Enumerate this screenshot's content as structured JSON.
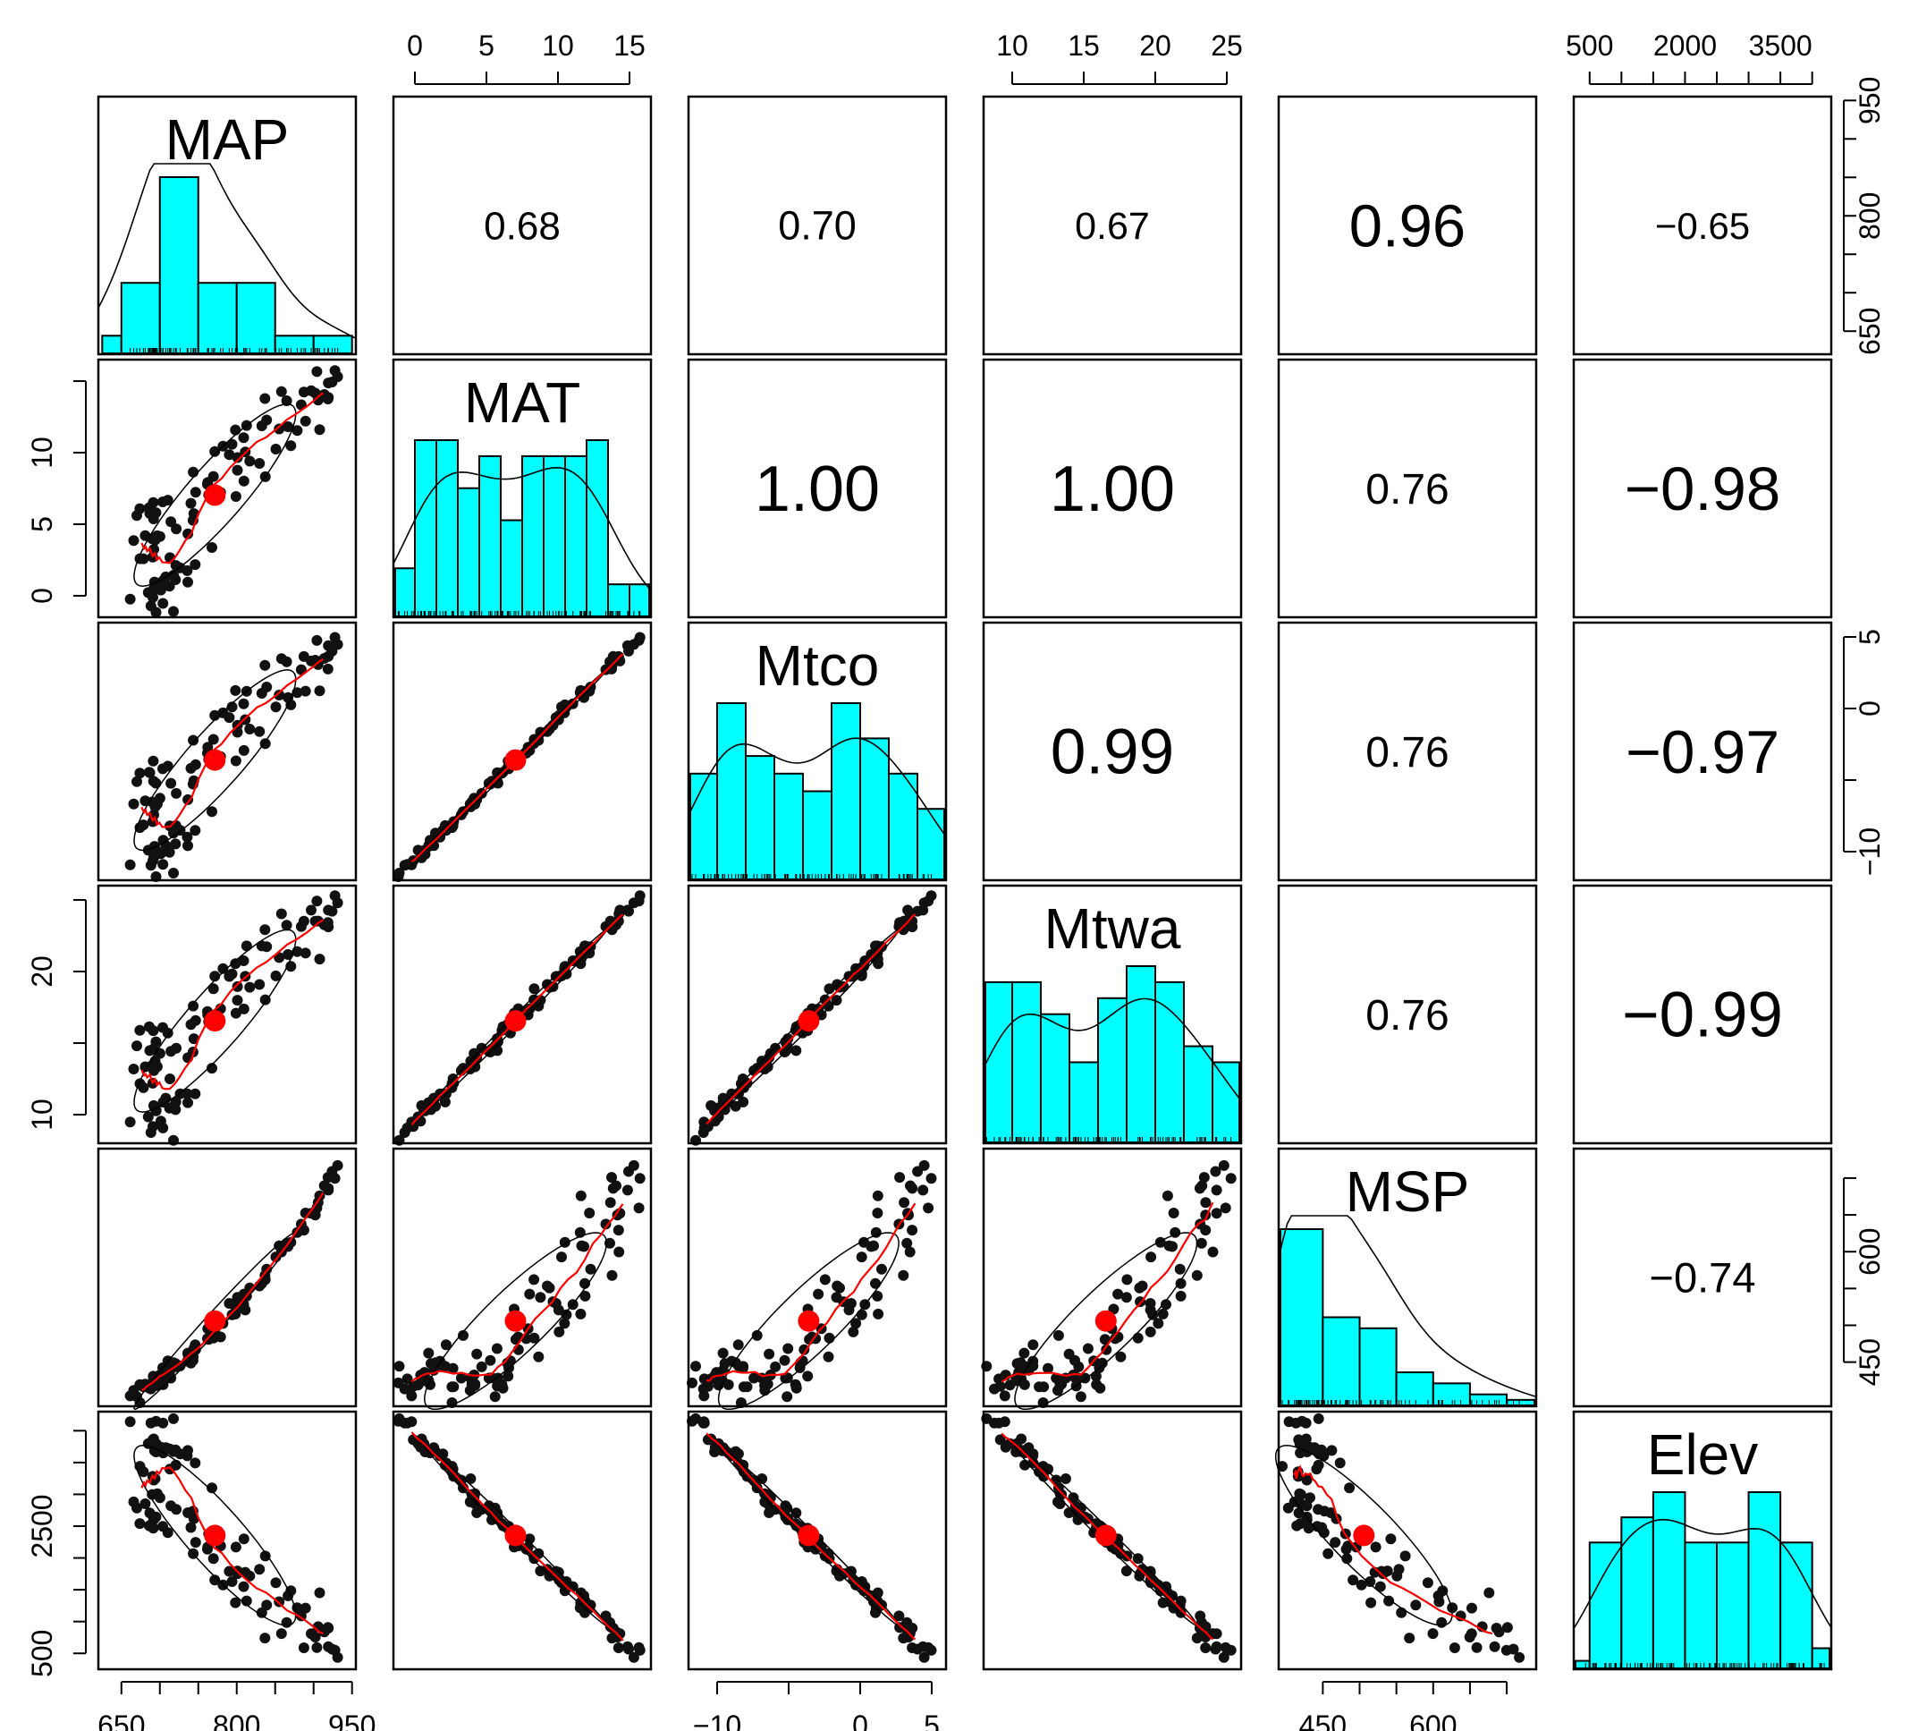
{
  "chart_data": {
    "type": "scatter",
    "title": "",
    "variables": [
      "MAP",
      "MAT",
      "Mtco",
      "Mtwa",
      "MSP",
      "Elev"
    ],
    "ranges": {
      "MAP": [
        620,
        955
      ],
      "MAT": [
        -1.5,
        16.5
      ],
      "Mtco": [
        -12,
        6
      ],
      "Mtwa": [
        8,
        26
      ],
      "MSP": [
        390,
        740
      ],
      "Elev": [
        250,
        4300
      ]
    },
    "axes": {
      "top": [
        {
          "variable": "MAT",
          "ticks": [
            0,
            5,
            10,
            15
          ]
        },
        {
          "variable": "Mtwa",
          "ticks": [
            10,
            15,
            20,
            25
          ]
        },
        {
          "variable": "Elev",
          "ticks": [
            500,
            1000,
            1500,
            2000,
            2500,
            3000,
            3500,
            4000
          ],
          "labels": [
            500,
            2000,
            3500
          ]
        }
      ],
      "bottom": [
        {
          "variable": "MAP",
          "ticks": [
            650,
            700,
            750,
            800,
            850,
            900,
            950
          ],
          "labels": [
            650,
            800,
            950
          ]
        },
        {
          "variable": "Mtco",
          "ticks": [
            -10,
            -5,
            0,
            5
          ],
          "labels": [
            -10,
            0,
            5
          ]
        },
        {
          "variable": "MSP",
          "ticks": [
            450,
            500,
            550,
            600,
            650,
            700
          ],
          "labels": [
            450,
            600
          ]
        }
      ],
      "left": [
        {
          "variable": "MAT",
          "ticks": [
            0,
            5,
            10,
            15
          ],
          "labels": [
            0,
            5,
            10
          ]
        },
        {
          "variable": "Mtwa",
          "ticks": [
            10,
            15,
            20,
            25
          ],
          "labels": [
            10,
            20
          ]
        },
        {
          "variable": "Elev",
          "ticks": [
            500,
            1000,
            1500,
            2000,
            2500,
            3000,
            3500,
            4000
          ],
          "labels": [
            500,
            2500
          ]
        }
      ],
      "right": [
        {
          "variable": "MAP",
          "ticks": [
            650,
            700,
            750,
            800,
            850,
            900,
            950
          ],
          "labels": [
            650,
            800,
            950
          ]
        },
        {
          "variable": "Mtco",
          "ticks": [
            -10,
            -5,
            0,
            5
          ],
          "labels": [
            -10,
            0,
            5
          ]
        },
        {
          "variable": "MSP",
          "ticks": [
            450,
            500,
            550,
            600,
            650,
            700
          ],
          "labels": [
            450,
            600
          ]
        }
      ]
    },
    "correlations": [
      {
        "row": 0,
        "col": 1,
        "label": "0.68"
      },
      {
        "row": 0,
        "col": 2,
        "label": "0.70"
      },
      {
        "row": 0,
        "col": 3,
        "label": "0.67"
      },
      {
        "row": 0,
        "col": 4,
        "label": "0.96"
      },
      {
        "row": 0,
        "col": 5,
        "label": "−0.65"
      },
      {
        "row": 1,
        "col": 2,
        "label": "1.00"
      },
      {
        "row": 1,
        "col": 3,
        "label": "1.00"
      },
      {
        "row": 1,
        "col": 4,
        "label": "0.76"
      },
      {
        "row": 1,
        "col": 5,
        "label": "−0.98"
      },
      {
        "row": 2,
        "col": 3,
        "label": "0.99"
      },
      {
        "row": 2,
        "col": 4,
        "label": "0.76"
      },
      {
        "row": 2,
        "col": 5,
        "label": "−0.97"
      },
      {
        "row": 3,
        "col": 4,
        "label": "0.76"
      },
      {
        "row": 3,
        "col": 5,
        "label": "−0.99"
      },
      {
        "row": 4,
        "col": 5,
        "label": "−0.74"
      }
    ],
    "histograms": {
      "MAP": {
        "breaks": [
          625,
          650,
          700,
          750,
          800,
          850,
          900,
          950
        ],
        "counts": [
          1,
          4,
          10,
          4,
          4,
          1,
          1
        ]
      },
      "MAT": {
        "breaks": [
          -1.5,
          0,
          1.5,
          3,
          4.5,
          6,
          7.5,
          9,
          10.5,
          12,
          13.5,
          15,
          16.5
        ],
        "counts": [
          3,
          11,
          11,
          8,
          10,
          6,
          10,
          10,
          10,
          11,
          2,
          2
        ]
      },
      "Mtco": {
        "breaks": [
          -12,
          -10,
          -8,
          -6,
          -4,
          -2,
          0,
          2,
          4,
          6
        ],
        "counts": [
          6,
          10,
          7,
          6,
          5,
          10,
          8,
          6,
          4
        ]
      },
      "Mtwa": {
        "breaks": [
          8,
          10,
          12,
          14,
          16,
          18,
          20,
          22,
          24,
          26
        ],
        "counts": [
          10,
          10,
          8,
          5,
          9,
          11,
          10,
          6,
          5
        ]
      },
      "MSP": {
        "breaks": [
          390,
          450,
          500,
          550,
          600,
          650,
          700,
          740
        ],
        "counts": [
          16,
          8,
          7,
          3,
          2,
          1,
          0.5
        ]
      },
      "Elev": {
        "breaks": [
          250,
          500,
          1000,
          1500,
          2000,
          2500,
          3000,
          3500,
          4000,
          4300
        ],
        "counts": [
          0.3,
          5,
          6,
          7,
          5,
          5,
          7,
          5,
          0.8
        ]
      }
    },
    "colors": {
      "hist_fill": "#00ffff",
      "smooth": "#ff0000",
      "points": "#111111",
      "centroid": "#ff0000",
      "frame": "#000000"
    }
  }
}
